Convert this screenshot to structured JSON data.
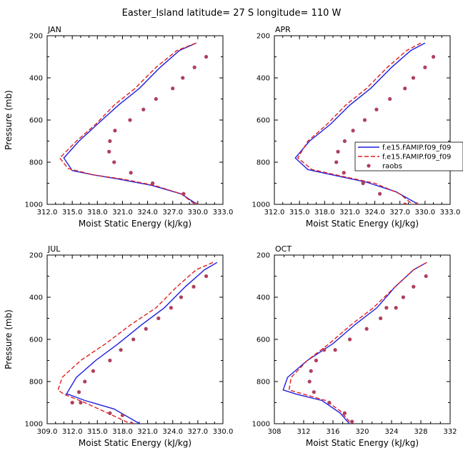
{
  "title": "Easter_Island  latitude= 27 S longitude= 110 W",
  "colors": {
    "model1": "#1f1fe0",
    "model2": "#e01f1f",
    "obs": "#b0405c"
  },
  "legend": {
    "entries": [
      "f.e15.FAMIP.f09_f09",
      "f.e15.FAMIP.f09_f09",
      "raobs"
    ],
    "placement": "right"
  },
  "chart_data": [
    {
      "type": "line",
      "label": "JAN",
      "xlabel": "Moist Static Energy (kJ/kg)",
      "ylabel": "Pressure (mb)",
      "xlim": [
        312.0,
        333.0
      ],
      "xticks": [
        "312.0",
        "315.0",
        "318.0",
        "321.0",
        "324.0",
        "327.0",
        "330.0",
        "333.0"
      ],
      "ylim": [
        1000,
        200
      ],
      "yticks": [
        "200",
        "400",
        "600",
        "800",
        "1000"
      ],
      "series": [
        {
          "name": "f.e15.FAMIP.f09_f09",
          "style": "solid",
          "x": [
            329.8,
            327.8,
            325.5,
            323.0,
            320.5,
            318.0,
            315.8,
            314.0,
            315.0,
            317.5,
            320.5,
            324.5,
            328.0,
            330.3
          ],
          "y": [
            235,
            270,
            350,
            450,
            530,
            620,
            700,
            780,
            840,
            860,
            880,
            910,
            950,
            1010
          ]
        },
        {
          "name": "f.e15.FAMIP.f09_f09",
          "style": "dashed",
          "x": [
            329.8,
            327.5,
            325.0,
            322.5,
            320.0,
            317.8,
            315.5,
            313.5,
            314.5,
            317.5,
            321.0,
            324.8,
            328.0,
            330.0
          ],
          "y": [
            235,
            270,
            350,
            450,
            530,
            620,
            700,
            780,
            830,
            860,
            880,
            910,
            950,
            1010
          ]
        },
        {
          "name": "raobs",
          "style": "points",
          "x": [
            331.0,
            329.6,
            328.2,
            327.0,
            325.0,
            323.5,
            321.9,
            320.1,
            319.5,
            319.4,
            320.0,
            322.0,
            324.6,
            328.3,
            329.8
          ],
          "y": [
            300,
            350,
            400,
            450,
            500,
            550,
            600,
            650,
            700,
            750,
            800,
            850,
            900,
            950,
            1000
          ]
        }
      ]
    },
    {
      "type": "line",
      "label": "APR",
      "xlabel": "Moist Static Energy (kJ/kg)",
      "ylabel": "",
      "xlim": [
        312.0,
        333.0
      ],
      "xticks": [
        "312.0",
        "315.0",
        "318.0",
        "321.0",
        "324.0",
        "327.0",
        "330.0",
        "333.0"
      ],
      "ylim": [
        1000,
        200
      ],
      "yticks": [
        "200",
        "400",
        "600",
        "800",
        "1000"
      ],
      "series": [
        {
          "name": "f.e15.FAMIP.f09_f09",
          "style": "solid",
          "x": [
            330.0,
            328.3,
            326.0,
            323.5,
            321.0,
            318.7,
            316.2,
            314.5,
            316.0,
            319.5,
            323.0,
            326.5,
            329.2
          ],
          "y": [
            235,
            270,
            350,
            450,
            530,
            620,
            700,
            780,
            835,
            865,
            895,
            940,
            1000
          ]
        },
        {
          "name": "f.e15.FAMIP.f09_f09",
          "style": "dashed",
          "x": [
            329.5,
            327.8,
            325.5,
            323.0,
            320.5,
            318.3,
            316.0,
            314.8,
            316.5,
            320.5,
            324.0,
            327.0,
            328.8
          ],
          "y": [
            235,
            270,
            350,
            450,
            530,
            620,
            700,
            780,
            835,
            870,
            900,
            950,
            1010
          ]
        },
        {
          "name": "raobs",
          "style": "points",
          "x": [
            331.0,
            330.0,
            328.6,
            327.6,
            325.8,
            324.2,
            322.8,
            321.4,
            320.4,
            319.6,
            319.4,
            320.3,
            322.6,
            324.6,
            327.6,
            329.0
          ],
          "y": [
            300,
            350,
            400,
            450,
            500,
            550,
            600,
            650,
            700,
            750,
            800,
            850,
            900,
            950,
            1000,
            1000
          ]
        }
      ]
    },
    {
      "type": "line",
      "label": "JUL",
      "xlabel": "Moist Static Energy (kJ/kg)",
      "ylabel": "Pressure (mb)",
      "xlim": [
        309.0,
        330.0
      ],
      "xticks": [
        "309.0",
        "312.0",
        "315.0",
        "318.0",
        "321.0",
        "324.0",
        "327.0",
        "330.0"
      ],
      "ylim": [
        1000,
        200
      ],
      "yticks": [
        "200",
        "400",
        "600",
        "800",
        "1000"
      ],
      "series": [
        {
          "name": "f.e15.FAMIP.f09_f09",
          "style": "solid",
          "x": [
            329.3,
            327.8,
            325.5,
            323.0,
            320.3,
            317.5,
            314.8,
            312.5,
            311.3,
            311.5,
            313.5,
            317.0,
            320.5
          ],
          "y": [
            235,
            270,
            350,
            450,
            530,
            620,
            700,
            780,
            860,
            860,
            890,
            930,
            1010
          ]
        },
        {
          "name": "f.e15.FAMIP.f09_f09",
          "style": "dashed",
          "x": [
            328.8,
            326.8,
            324.5,
            322.0,
            319.0,
            316.0,
            313.0,
            310.8,
            310.3,
            311.0,
            313.5,
            316.8,
            319.5
          ],
          "y": [
            235,
            270,
            350,
            450,
            530,
            620,
            700,
            780,
            840,
            860,
            900,
            960,
            1010
          ]
        },
        {
          "name": "raobs",
          "style": "points",
          "x": [
            328.0,
            326.5,
            325.0,
            323.8,
            322.3,
            320.8,
            319.3,
            317.8,
            316.5,
            314.5,
            313.5,
            312.8,
            312.0,
            313.0,
            316.5,
            318.0,
            319.1
          ],
          "y": [
            300,
            350,
            400,
            450,
            500,
            550,
            600,
            650,
            700,
            750,
            800,
            850,
            900,
            900,
            950,
            960,
            1000
          ]
        }
      ]
    },
    {
      "type": "line",
      "label": "OCT",
      "xlabel": "Moist Static Energy (kJ/kg)",
      "ylabel": "",
      "xlim": [
        308,
        332
      ],
      "xticks": [
        "308",
        "312",
        "316",
        "320",
        "324",
        "328",
        "332"
      ],
      "ylim": [
        1000,
        200
      ],
      "yticks": [
        "200",
        "400",
        "600",
        "800",
        "1000"
      ],
      "series": [
        {
          "name": "f.e15.FAMIP.f09_f09",
          "style": "solid",
          "x": [
            328.8,
            327.0,
            324.5,
            322.0,
            319.0,
            316.0,
            312.5,
            309.8,
            309.2,
            311.0,
            314.5,
            317.0,
            318.5
          ],
          "y": [
            235,
            270,
            350,
            450,
            530,
            620,
            700,
            780,
            840,
            860,
            890,
            950,
            1010
          ]
        },
        {
          "name": "f.e15.FAMIP.f09_f09",
          "style": "dashed",
          "x": [
            328.8,
            327.0,
            324.5,
            321.5,
            318.5,
            315.5,
            312.5,
            310.3,
            310.0,
            312.0,
            315.0,
            317.0,
            318.5
          ],
          "y": [
            235,
            270,
            350,
            450,
            530,
            620,
            700,
            780,
            840,
            860,
            890,
            940,
            1000
          ]
        },
        {
          "name": "raobs",
          "style": "points",
          "x": [
            328.7,
            327.0,
            325.6,
            324.6,
            323.3,
            322.5,
            320.6,
            318.3,
            316.3,
            314.8,
            313.7,
            313.0,
            312.8,
            313.4,
            315.5,
            317.6,
            318.6
          ],
          "y": [
            300,
            350,
            400,
            450,
            450,
            500,
            550,
            600,
            650,
            650,
            700,
            750,
            800,
            850,
            900,
            950,
            990
          ]
        }
      ]
    }
  ]
}
